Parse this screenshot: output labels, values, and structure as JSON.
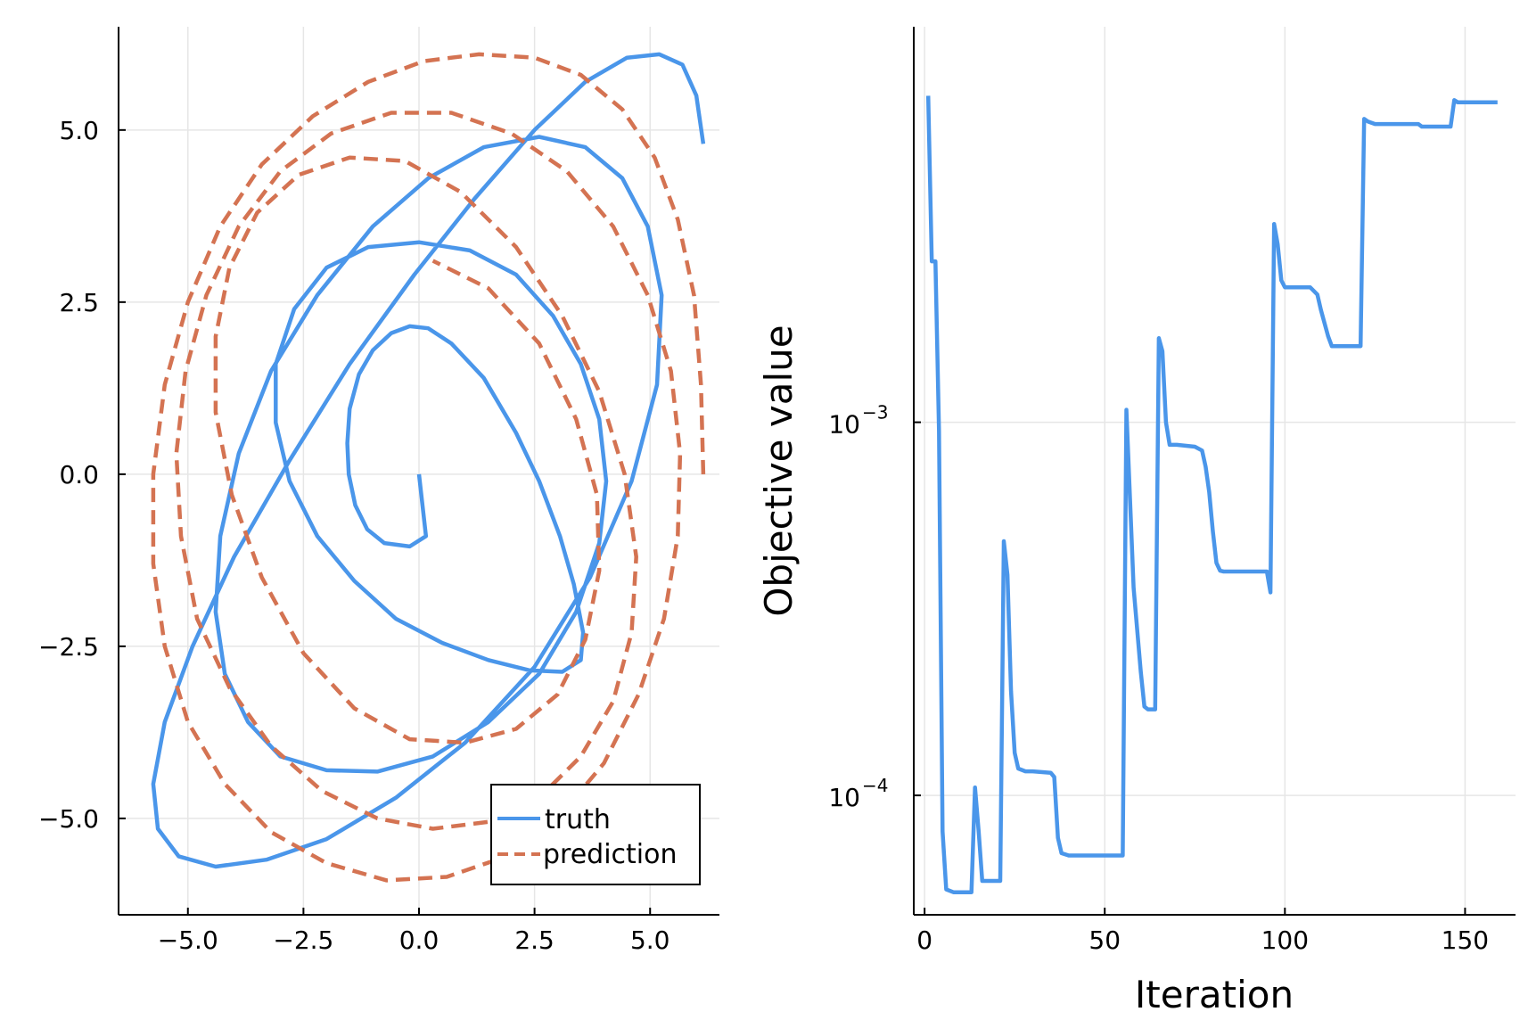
{
  "chart_data": [
    {
      "type": "line",
      "title": "",
      "xlabel": "",
      "ylabel": "",
      "xlim": [
        -6.5,
        6.5
      ],
      "ylim": [
        -6.4,
        6.5
      ],
      "x_ticks": [
        -5.0,
        -2.5,
        0.0,
        2.5,
        5.0
      ],
      "y_ticks": [
        -5.0,
        -2.5,
        0.0,
        2.5,
        5.0
      ],
      "x_tick_labels": [
        "−5.0",
        "−2.5",
        "0.0",
        "2.5",
        "5.0"
      ],
      "y_tick_labels": [
        "−5.0",
        "−2.5",
        "0.0",
        "2.5",
        "5.0"
      ],
      "grid": true,
      "legend": {
        "position": "bottom-right",
        "entries": [
          "truth",
          "prediction"
        ]
      },
      "series": [
        {
          "name": "truth",
          "color": "#4a96ea",
          "style": "solid",
          "x": [
            0.0,
            0.15,
            -0.2,
            -0.75,
            -1.12,
            -1.38,
            -1.52,
            -1.55,
            -1.5,
            -1.3,
            -1.0,
            -0.6,
            -0.2,
            0.2,
            0.7,
            1.4,
            2.1,
            2.6,
            3.05,
            3.35,
            3.55,
            3.5,
            3.1,
            2.4,
            1.5,
            0.5,
            -0.5,
            -1.4,
            -2.2,
            -2.8,
            -3.1,
            -3.1,
            -2.7,
            -2.0,
            -1.1,
            0.0,
            1.1,
            2.1,
            2.9,
            3.5,
            3.9,
            4.05,
            3.9,
            3.4,
            2.6,
            1.5,
            0.3,
            -0.9,
            -2.0,
            -3.0,
            -3.7,
            -4.2,
            -4.4,
            -4.3,
            -3.9,
            -3.2,
            -2.2,
            -1.0,
            0.2,
            1.4,
            2.6,
            3.6,
            4.4,
            4.95,
            5.25,
            5.15,
            4.6,
            3.7,
            2.5,
            1.0,
            -0.5,
            -2.0,
            -3.3,
            -4.4,
            -5.2,
            -5.65,
            -5.75,
            -5.5,
            -4.9,
            -4.0,
            -2.8,
            -1.5,
            -0.1,
            1.2,
            2.5,
            3.6,
            4.5,
            5.2,
            5.7,
            6.0,
            6.15
          ],
          "y": [
            0.0,
            -0.9,
            -1.05,
            -1.0,
            -0.8,
            -0.45,
            0.0,
            0.45,
            0.95,
            1.45,
            1.8,
            2.05,
            2.15,
            2.12,
            1.9,
            1.4,
            0.6,
            -0.1,
            -0.9,
            -1.6,
            -2.3,
            -2.7,
            -2.87,
            -2.85,
            -2.7,
            -2.45,
            -2.1,
            -1.55,
            -0.9,
            -0.1,
            0.75,
            1.6,
            2.4,
            3.0,
            3.3,
            3.37,
            3.25,
            2.9,
            2.3,
            1.6,
            0.8,
            -0.1,
            -1.0,
            -2.0,
            -2.9,
            -3.6,
            -4.1,
            -4.32,
            -4.3,
            -4.1,
            -3.6,
            -2.9,
            -2.0,
            -0.9,
            0.3,
            1.5,
            2.6,
            3.6,
            4.3,
            4.75,
            4.9,
            4.75,
            4.3,
            3.6,
            2.6,
            1.3,
            -0.1,
            -1.5,
            -2.8,
            -3.9,
            -4.7,
            -5.3,
            -5.6,
            -5.7,
            -5.55,
            -5.15,
            -4.5,
            -3.6,
            -2.5,
            -1.2,
            0.2,
            1.6,
            2.9,
            4.0,
            5.0,
            5.7,
            6.05,
            6.1,
            5.95,
            5.5,
            4.8
          ]
        },
        {
          "name": "prediction",
          "color": "#d47352",
          "style": "dashed",
          "x": [
            6.15,
            6.1,
            5.95,
            5.6,
            5.1,
            4.4,
            3.5,
            2.5,
            1.3,
            0.1,
            -1.1,
            -2.3,
            -3.4,
            -4.3,
            -5.0,
            -5.5,
            -5.75,
            -5.75,
            -5.5,
            -5.0,
            -4.2,
            -3.2,
            -2.0,
            -0.7,
            0.6,
            1.9,
            3.0,
            4.0,
            4.75,
            5.3,
            5.6,
            5.65,
            5.45,
            4.95,
            4.2,
            3.2,
            2.0,
            0.7,
            -0.6,
            -1.9,
            -3.0,
            -3.9,
            -4.6,
            -5.05,
            -5.25,
            -5.15,
            -4.8,
            -4.1,
            -3.2,
            -2.1,
            -0.9,
            0.3,
            1.5,
            2.6,
            3.5,
            4.2,
            4.6,
            4.7,
            4.45,
            3.9,
            3.1,
            2.1,
            0.9,
            -0.3,
            -1.5,
            -2.6,
            -3.5,
            -4.1,
            -4.4,
            -4.4,
            -4.05,
            -3.4,
            -2.5,
            -1.4,
            -0.2,
            1.0,
            2.1,
            3.0,
            3.6,
            3.9,
            3.85,
            3.4,
            2.6,
            1.5,
            0.3
          ],
          "y": [
            0.0,
            1.3,
            2.6,
            3.7,
            4.6,
            5.3,
            5.8,
            6.05,
            6.1,
            6.0,
            5.7,
            5.2,
            4.5,
            3.6,
            2.5,
            1.3,
            0.0,
            -1.3,
            -2.5,
            -3.6,
            -4.5,
            -5.2,
            -5.65,
            -5.9,
            -5.85,
            -5.55,
            -5.0,
            -4.2,
            -3.2,
            -2.1,
            -0.9,
            0.3,
            1.5,
            2.6,
            3.6,
            4.4,
            4.95,
            5.25,
            5.25,
            4.95,
            4.4,
            3.6,
            2.6,
            1.5,
            0.3,
            -0.9,
            -2.1,
            -3.1,
            -3.95,
            -4.6,
            -5.0,
            -5.15,
            -5.05,
            -4.7,
            -4.1,
            -3.3,
            -2.3,
            -1.2,
            0.0,
            1.2,
            2.3,
            3.3,
            4.1,
            4.55,
            4.6,
            4.35,
            3.8,
            3.0,
            2.0,
            0.9,
            -0.3,
            -1.5,
            -2.6,
            -3.4,
            -3.85,
            -3.9,
            -3.7,
            -3.2,
            -2.4,
            -1.4,
            -0.3,
            0.8,
            1.9,
            2.7,
            3.1
          ]
        }
      ]
    },
    {
      "type": "line",
      "title": "",
      "xlabel": "Iteration",
      "ylabel": "Objective value",
      "xlim": [
        -3,
        164
      ],
      "ylim_log10": [
        -4.32,
        -1.94
      ],
      "yscale": "log",
      "x_ticks": [
        0,
        50,
        100,
        150
      ],
      "x_tick_labels": [
        "0",
        "50",
        "100",
        "150"
      ],
      "y_ticks": [
        0.0001,
        0.001
      ],
      "y_tick_labels": [
        {
          "base": "10",
          "exp": "−4"
        },
        {
          "base": "10",
          "exp": "−3"
        }
      ],
      "grid": true,
      "series": [
        {
          "name": "",
          "color": "#4a96ea",
          "style": "solid",
          "x": [
            1,
            2,
            3,
            4,
            5,
            6,
            8,
            10,
            13,
            14,
            15,
            16,
            17,
            19,
            21,
            22,
            23,
            24,
            25,
            26,
            28,
            30,
            35,
            36,
            37,
            38,
            40,
            55,
            56,
            58,
            60,
            61,
            62,
            63,
            64,
            65,
            66,
            67,
            68,
            70,
            75,
            77,
            78,
            79,
            80,
            81,
            82,
            83,
            85,
            95,
            96,
            97,
            98,
            99,
            100,
            101,
            107,
            109,
            110,
            112,
            113,
            115,
            121,
            122,
            123,
            125,
            137,
            138,
            146,
            147,
            148,
            150,
            159
          ],
          "y": [
            0.0075,
            0.0027,
            0.0027,
            0.00095,
            8e-05,
            5.6e-05,
            5.5e-05,
            5.5e-05,
            5.5e-05,
            0.000105,
            8e-05,
            5.9e-05,
            5.9e-05,
            5.9e-05,
            5.9e-05,
            0.00048,
            0.00039,
            0.00019,
            0.00013,
            0.000118,
            0.000116,
            0.000116,
            0.000115,
            0.000112,
            7.7e-05,
            7e-05,
            6.9e-05,
            6.9e-05,
            0.00108,
            0.00036,
            0.000215,
            0.000173,
            0.00017,
            0.00017,
            0.00017,
            0.00168,
            0.00155,
            0.001,
            0.00087,
            0.00087,
            0.00086,
            0.00084,
            0.00076,
            0.00065,
            0.00051,
            0.00042,
            0.0004,
            0.000398,
            0.000398,
            0.000398,
            0.00035,
            0.0034,
            0.003,
            0.0024,
            0.0023,
            0.0023,
            0.0023,
            0.0022,
            0.002,
            0.0017,
            0.0016,
            0.0016,
            0.0016,
            0.0065,
            0.0064,
            0.0063,
            0.0063,
            0.0062,
            0.0062,
            0.0073,
            0.0072,
            0.0072,
            0.0072
          ]
        }
      ]
    }
  ],
  "colors": {
    "truth": "#4a96ea",
    "prediction": "#d47352",
    "grid": "#e6e6e6",
    "axis": "#000000"
  }
}
